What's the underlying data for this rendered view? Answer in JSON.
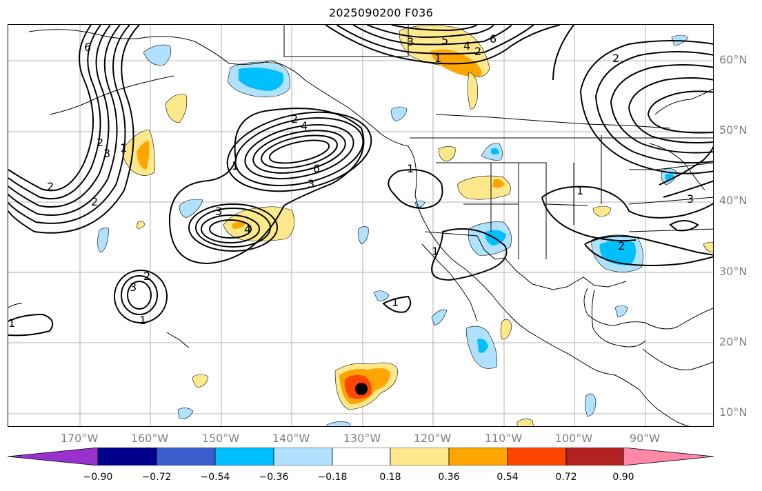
{
  "title": "2025090200 F036",
  "lat_labels": [
    "60°N",
    "50°N",
    "40°N",
    "30°N",
    "20°N",
    "10°N"
  ],
  "lon_labels": [
    "170°W",
    "160°W",
    "150°W",
    "140°W",
    "130°W",
    "120°W",
    "110°W",
    "100°W",
    "90°W"
  ],
  "contour_labels": [
    "6",
    "2",
    "2",
    "3",
    "1",
    "2",
    "3",
    "5",
    "4",
    "1",
    "6",
    "2",
    "2",
    "4",
    "6",
    "3",
    "1",
    "3",
    "4",
    "1",
    "2",
    "3",
    "1",
    "1",
    "1",
    "1",
    "2",
    "3",
    "2",
    "1"
  ],
  "colorbar": {
    "ticks": [
      "−0.90",
      "−0.72",
      "−0.54",
      "−0.36",
      "−0.18",
      "0.18",
      "0.36",
      "0.54",
      "0.72",
      "0.90"
    ],
    "colors": [
      "#9932cc",
      "#00008b",
      "#3a5fcd",
      "#00bfff",
      "#b0e2ff",
      "#ffffff",
      "#fde98b",
      "#ffa500",
      "#ff4500",
      "#b22222",
      "#ff88aa"
    ]
  },
  "marker": {
    "label": "storm-center",
    "color": "#000000"
  }
}
